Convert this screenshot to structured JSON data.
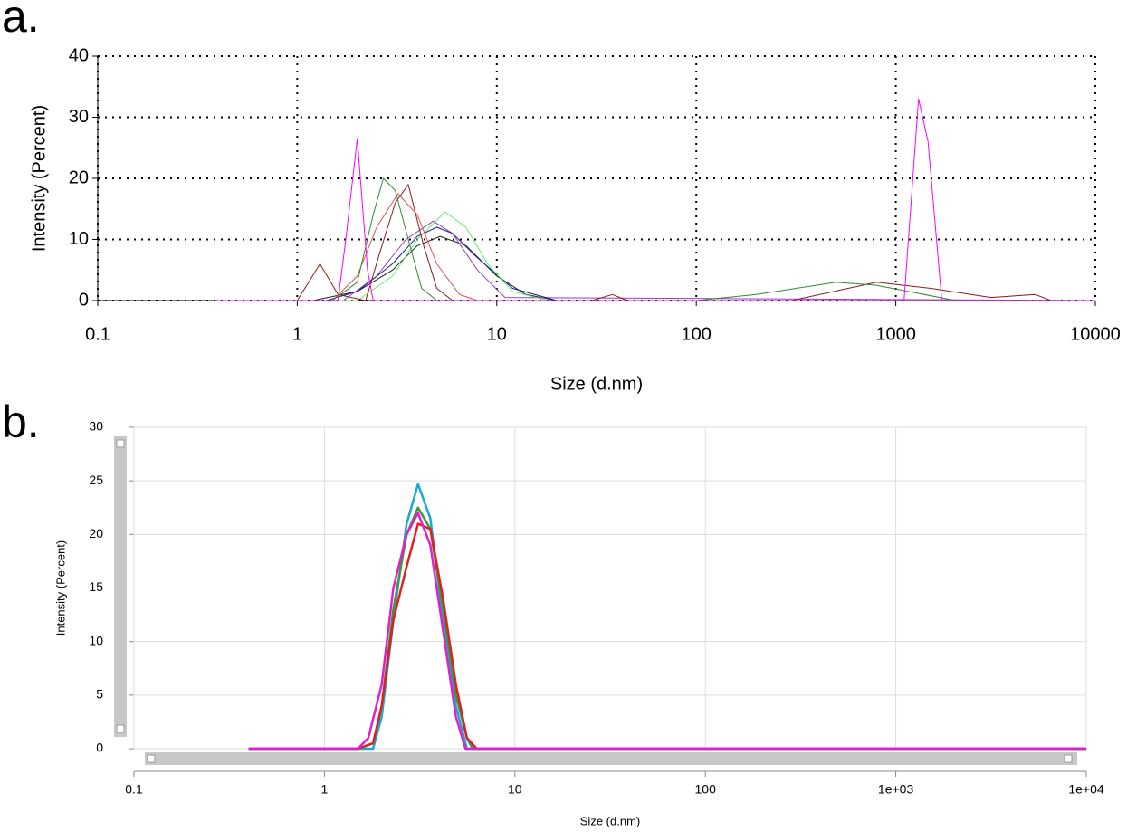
{
  "chart_data": [
    {
      "type": "line",
      "panel_label": "a.",
      "xlabel": "Size (d.nm)",
      "ylabel": "Intensity (Percent)",
      "xscale": "log",
      "xlim": [
        0.1,
        10000
      ],
      "xticks": [
        0.1,
        1,
        10,
        100,
        1000,
        10000
      ],
      "ylim": [
        0,
        40
      ],
      "yticks": [
        0,
        10,
        20,
        30,
        40
      ],
      "grid": true,
      "series": [
        {
          "color": "#202020",
          "x": [
            0.4,
            1.2,
            2,
            3,
            4,
            5.2,
            7,
            10,
            14,
            20,
            10000
          ],
          "values": [
            0,
            0,
            1.5,
            5,
            9,
            10.5,
            9,
            4,
            1,
            0,
            0
          ]
        },
        {
          "color": "#9040c0",
          "x": [
            0.4,
            1.7,
            2.5,
            3.5,
            4.8,
            6,
            8,
            11,
            10000
          ],
          "values": [
            0,
            0,
            4,
            10,
            13,
            11,
            5,
            0.5,
            0
          ]
        },
        {
          "color": "#1a1aa0",
          "x": [
            0.4,
            1.4,
            2,
            3,
            4,
            5,
            6,
            8,
            12,
            20,
            10000
          ],
          "values": [
            0,
            0,
            1.5,
            6,
            10.5,
            12,
            11,
            7,
            2,
            0,
            0
          ]
        },
        {
          "color": "#66ee66",
          "x": [
            0.4,
            2,
            3,
            4,
            5.5,
            7,
            9,
            12,
            18,
            10000
          ],
          "values": [
            0,
            0,
            4,
            10,
            14.5,
            12,
            6,
            1.5,
            0,
            0
          ]
        },
        {
          "color": "#e05050",
          "x": [
            0.4,
            1.5,
            2,
            2.5,
            3.2,
            4,
            5,
            6.5,
            8,
            10000
          ],
          "values": [
            0,
            0,
            4,
            12,
            17.5,
            14,
            6,
            1,
            0,
            0
          ]
        },
        {
          "color": "#8b1a1a",
          "x": [
            0.4,
            1,
            1.3,
            1.6,
            2.2,
            2.6,
            3.1,
            3.6,
            4.3,
            5,
            6,
            30,
            38,
            45,
            300,
            800,
            1500,
            3000,
            5000,
            6000,
            10000
          ],
          "values": [
            0,
            0,
            6,
            1,
            0,
            8,
            16,
            19,
            9,
            2,
            0,
            0,
            1,
            0,
            0,
            3,
            2,
            0.5,
            1,
            0,
            0
          ]
        },
        {
          "color": "#2e8b2e",
          "x": [
            0.4,
            1.5,
            2,
            2.4,
            2.7,
            3.1,
            3.6,
            4.2,
            5,
            100,
            200,
            500,
            800,
            2000,
            10000
          ],
          "values": [
            0,
            0,
            3,
            14,
            20,
            18,
            10,
            2,
            0,
            0,
            1,
            3,
            2.5,
            0,
            0
          ]
        },
        {
          "color": "#ff00ff",
          "x": [
            0.4,
            1.6,
            1.75,
            2,
            2.25,
            2.4,
            1000,
            1100,
            1300,
            1450,
            1700,
            10000
          ],
          "values": [
            0,
            0,
            10,
            26.5,
            5,
            0,
            0,
            0,
            33,
            26,
            0,
            0
          ]
        }
      ]
    },
    {
      "type": "line",
      "panel_label": "b.",
      "xlabel": "Size (d.nm)",
      "ylabel": "Intensity (Percent)",
      "xscale": "log",
      "xlim": [
        0.1,
        10000
      ],
      "xticks": [
        0.1,
        1,
        10,
        100,
        {
          "value": 1000,
          "label": "1e+03"
        },
        {
          "value": 10000,
          "label": "1e+04"
        }
      ],
      "ylim": [
        0,
        30
      ],
      "yticks": [
        0,
        5,
        10,
        15,
        20,
        25,
        30
      ],
      "grid": true,
      "series": [
        {
          "color": "#1ba7d4",
          "x": [
            0.4,
            1.5,
            1.8,
            2,
            2.3,
            2.7,
            3.1,
            3.6,
            4.2,
            4.9,
            5.6,
            6,
            10000
          ],
          "values": [
            0,
            0,
            0,
            3,
            12,
            21,
            24.7,
            21.5,
            12,
            4,
            0,
            0,
            0
          ]
        },
        {
          "color": "#3a9a3a",
          "x": [
            0.4,
            1.5,
            1.8,
            2,
            2.3,
            2.7,
            3.1,
            3.6,
            4.2,
            4.9,
            5.6,
            6,
            10000
          ],
          "values": [
            0,
            0,
            0.5,
            4,
            13,
            20,
            22.5,
            20.5,
            13,
            5,
            1,
            0,
            0
          ]
        },
        {
          "color": "#e02020",
          "x": [
            0.4,
            1.5,
            1.8,
            2,
            2.3,
            2.7,
            3.1,
            3.6,
            4.2,
            4.9,
            5.6,
            6.3,
            10000
          ],
          "values": [
            0,
            0,
            0.5,
            4,
            12,
            17,
            21,
            20.5,
            14,
            6,
            1,
            0,
            0
          ]
        },
        {
          "color": "#e020d0",
          "x": [
            0.4,
            1.5,
            1.7,
            2,
            2.3,
            2.7,
            3.1,
            3.6,
            4.2,
            4.9,
            5.5,
            6,
            10000
          ],
          "values": [
            0,
            0,
            1,
            6,
            15,
            20,
            22,
            19,
            11,
            3,
            0,
            0,
            0
          ]
        }
      ]
    }
  ]
}
